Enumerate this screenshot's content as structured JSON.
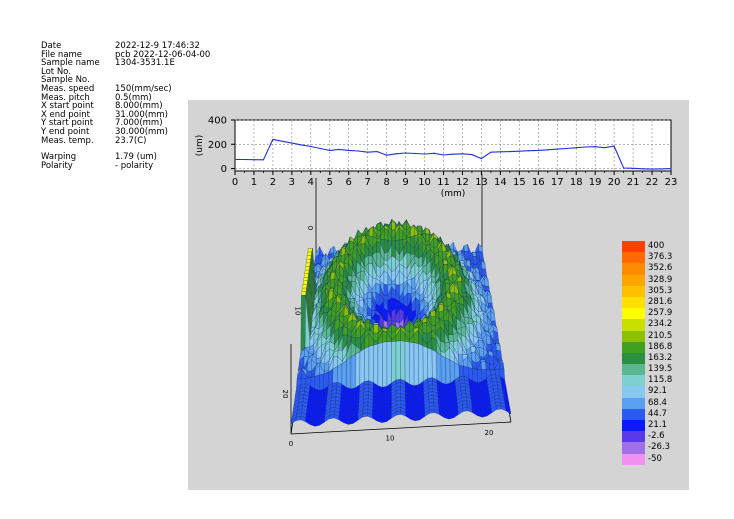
{
  "info": [
    {
      "key": "Date",
      "value": "2022-12-9 17:46:32"
    },
    {
      "key": "File name",
      "value": "pcb 2022-12-06-04-00"
    },
    {
      "key": "Sample name",
      "value": "1304-3531.1E"
    },
    {
      "key": "Lot No.",
      "value": ""
    },
    {
      "key": "Sample No.",
      "value": ""
    },
    {
      "key": "Meas. speed",
      "value": "150(mm/sec)"
    },
    {
      "key": "Meas. pitch",
      "value": "0.5(mm)"
    },
    {
      "key": "X start point",
      "value": "8.000(mm)"
    },
    {
      "key": "X end point",
      "value": "31.000(mm)"
    },
    {
      "key": "Y start point",
      "value": "7.000(mm)"
    },
    {
      "key": "Y end point",
      "value": "30.000(mm)"
    },
    {
      "key": "Meas. temp.",
      "value": "23.7(C)"
    }
  ],
  "info2": [
    {
      "key": "Warping",
      "value": "1.79 (um)"
    },
    {
      "key": "Polarity",
      "value": "- polarity"
    }
  ],
  "chart_data": [
    {
      "type": "line",
      "xlabel": "(mm)",
      "ylabel": "(um)",
      "xlim": [
        0,
        23
      ],
      "ylim": [
        -20,
        400
      ],
      "x_ticks": [
        "0",
        "1",
        "2",
        "3",
        "4",
        "5",
        "6",
        "7",
        "8",
        "9",
        "10",
        "11",
        "12",
        "13",
        "14",
        "15",
        "16",
        "17",
        "18",
        "19",
        "20",
        "21",
        "22",
        "23"
      ],
      "y_ticks": [
        "0",
        "200",
        "400"
      ],
      "grid": true,
      "line_color": "#2030e0",
      "series": [
        {
          "x": [
            0,
            0.5,
            1,
            1.5,
            2,
            2.5,
            3,
            3.5,
            4,
            4.5,
            5,
            5.5,
            6,
            6.5,
            7,
            7.5,
            8,
            8.5,
            9,
            9.5,
            10,
            10.5,
            11,
            11.5,
            12,
            12.5,
            13,
            13.5,
            14,
            14.5,
            15,
            15.5,
            16,
            16.5,
            17,
            17.5,
            18,
            18.5,
            19,
            19.5,
            20,
            20.5,
            21,
            21.5,
            22,
            22.5,
            23
          ],
          "values": [
            75,
            75,
            73,
            72,
            240,
            225,
            210,
            195,
            182,
            165,
            150,
            158,
            150,
            145,
            135,
            140,
            110,
            122,
            128,
            124,
            120,
            126,
            112,
            118,
            122,
            115,
            82,
            135,
            138,
            140,
            143,
            147,
            150,
            155,
            160,
            165,
            172,
            178,
            180,
            172,
            185,
            5,
            2,
            -2,
            -4,
            -3,
            0
          ]
        }
      ]
    },
    {
      "type": "heatmap",
      "x_ticks": [
        "0",
        "10",
        "20"
      ],
      "y_ticks": [
        "0",
        "10",
        "20"
      ],
      "color_scale": [
        {
          "label": "400",
          "color": "#ff4000"
        },
        {
          "label": "376.3",
          "color": "#ff6a00"
        },
        {
          "label": "352.6",
          "color": "#ff8c00"
        },
        {
          "label": "328.9",
          "color": "#ffa500"
        },
        {
          "label": "305.3",
          "color": "#ffc000"
        },
        {
          "label": "281.6",
          "color": "#ffe000"
        },
        {
          "label": "257.9",
          "color": "#ffff00"
        },
        {
          "label": "234.2",
          "color": "#c8e000"
        },
        {
          "label": "210.5",
          "color": "#8cc000"
        },
        {
          "label": "186.8",
          "color": "#40a020"
        },
        {
          "label": "163.2",
          "color": "#2a9040"
        },
        {
          "label": "139.5",
          "color": "#5ab890"
        },
        {
          "label": "115.8",
          "color": "#7ed0d0"
        },
        {
          "label": "92.1",
          "color": "#88c8f0"
        },
        {
          "label": "68.4",
          "color": "#5aa0f0"
        },
        {
          "label": "44.7",
          "color": "#2a5af0"
        },
        {
          "label": "21.1",
          "color": "#0a1aff"
        },
        {
          "label": "-2.6",
          "color": "#5a3ae8"
        },
        {
          "label": "-26.3",
          "color": "#a070e8"
        },
        {
          "label": "-50",
          "color": "#f090f0"
        }
      ]
    }
  ]
}
